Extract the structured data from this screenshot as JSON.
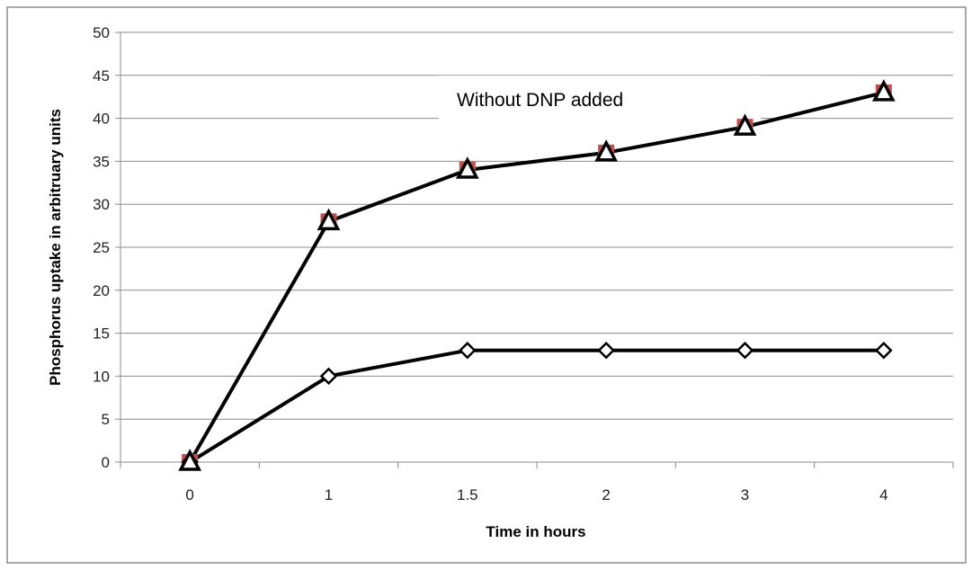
{
  "chart_data": {
    "type": "line",
    "title": "",
    "xlabel": "Time in hours",
    "ylabel": "Phosphorus uptake in arbitruary units",
    "categories": [
      "0",
      "1",
      "1.5",
      "2",
      "3",
      "4"
    ],
    "ylim": [
      0,
      50
    ],
    "yticks": [
      0,
      5,
      10,
      15,
      20,
      25,
      30,
      35,
      40,
      45,
      50
    ],
    "grid": "horizontal",
    "annotation": "Without DNP added",
    "series": [
      {
        "values": [
          0,
          28,
          34,
          36,
          39,
          43
        ],
        "marker": "square",
        "color": "#c0504d"
      },
      {
        "values": [
          0,
          28,
          34,
          36,
          39,
          43
        ],
        "marker": "triangle",
        "color": "#000000"
      },
      {
        "values": [
          0,
          10,
          13,
          13,
          13,
          13
        ],
        "marker": "diamond",
        "color": "#000000"
      }
    ]
  }
}
